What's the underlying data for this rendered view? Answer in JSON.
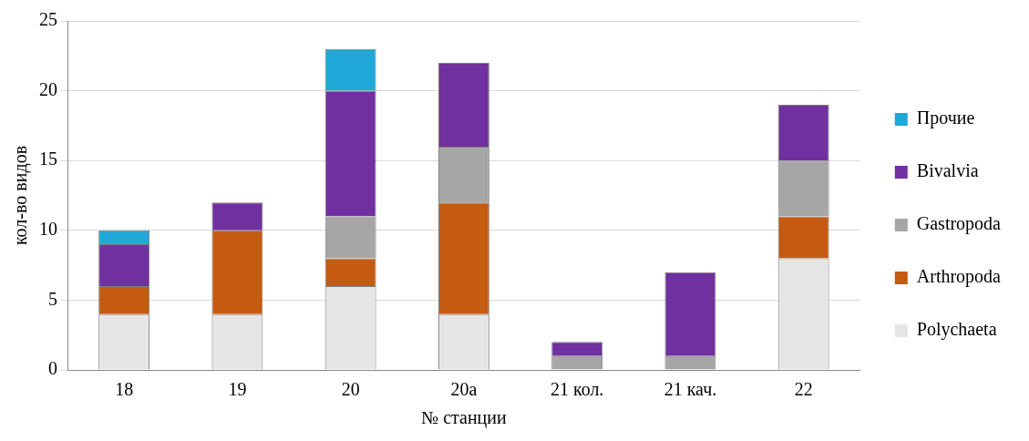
{
  "chart_data": {
    "type": "bar",
    "stacked": true,
    "xlabel": "№ станции",
    "ylabel": "кол-во видов",
    "categories": [
      "18",
      "19",
      "20",
      "20а",
      "21 кол.",
      "21 кач.",
      "22"
    ],
    "series": [
      {
        "name": "Polychaeta",
        "color": "#e6e6e6",
        "values": [
          4,
          4,
          6,
          4,
          0,
          0,
          8
        ]
      },
      {
        "name": "Arthropoda",
        "color": "#c55a11",
        "values": [
          2,
          6,
          2,
          8,
          0,
          0,
          3
        ]
      },
      {
        "name": "Gastropoda",
        "color": "#a6a6a6",
        "values": [
          0,
          0,
          3,
          4,
          1,
          1,
          4
        ]
      },
      {
        "name": "Bivalvia",
        "color": "#7030a0",
        "values": [
          3,
          2,
          9,
          6,
          1,
          6,
          4
        ]
      },
      {
        "name": "Прочие",
        "color": "#1fa8d8",
        "values": [
          1,
          0,
          3,
          0,
          0,
          0,
          0
        ]
      }
    ],
    "ylim": [
      0,
      25
    ],
    "yticks": [
      0,
      5,
      10,
      15,
      20,
      25
    ],
    "grid": "y",
    "legend": "right"
  }
}
